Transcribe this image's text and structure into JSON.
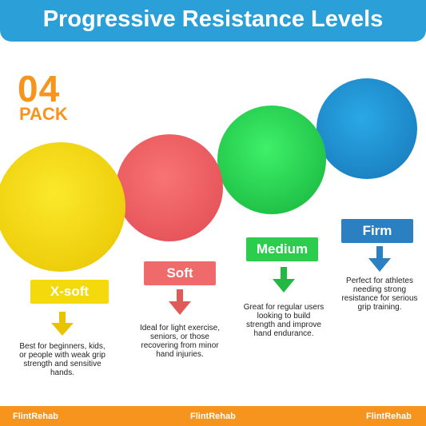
{
  "header": {
    "title": "Progressive Resistance Levels"
  },
  "badge": {
    "number": "04",
    "label": "PACK"
  },
  "levels": [
    {
      "label": "X-soft",
      "description": [
        "Best for beginners, kids,",
        "or people with weak grip",
        "strength and sensitive",
        "hands."
      ]
    },
    {
      "label": "Soft",
      "description": [
        "Ideal for light exercise,",
        "seniors, or those",
        "recovering from minor",
        "hand injuries."
      ]
    },
    {
      "label": "Medium",
      "description": [
        "Great for regular users",
        "looking to build",
        "strength and improve",
        "hand endurance."
      ]
    },
    {
      "label": "Firm",
      "description": [
        "Perfect for athletes",
        "needing strong",
        "resistance for serious",
        "grip training."
      ]
    }
  ],
  "footer": {
    "brands": [
      "FlintRehab",
      "FlintRehab",
      "FlintRehab"
    ]
  }
}
